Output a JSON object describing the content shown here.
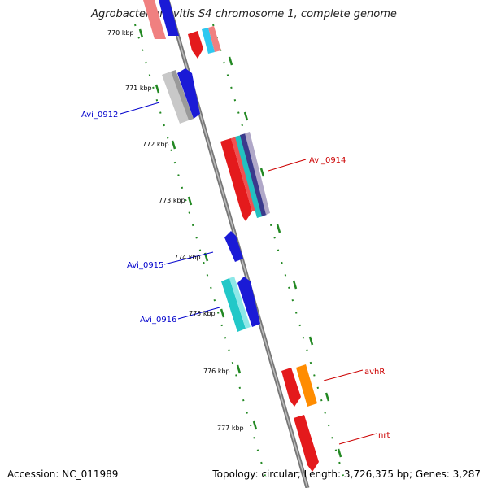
{
  "title": "Agrobacterium vitis S4 chromosome 1, complete genome",
  "footer": {
    "accession": "Accession: NC_011989",
    "summary": "Topology: circular; Length: 3,726,375 bp; Genes: 3,287"
  },
  "colors": {
    "backbone": "#888888",
    "tick_minor": "#228822",
    "label_blue": "#0000cc",
    "label_red": "#cc0000"
  },
  "ticks": [
    {
      "label": "770 kbp"
    },
    {
      "label": "771 kbp"
    },
    {
      "label": "772 kbp"
    },
    {
      "label": "773 kbp"
    },
    {
      "label": "774 kbp"
    },
    {
      "label": "775 kbp"
    },
    {
      "label": "776 kbp"
    },
    {
      "label": "777 kbp"
    }
  ],
  "gene_labels": [
    {
      "name": "Avi_0912",
      "side": "left",
      "color": "blue"
    },
    {
      "name": "Avi_0914",
      "side": "right",
      "color": "red"
    },
    {
      "name": "Avi_0915",
      "side": "left",
      "color": "blue"
    },
    {
      "name": "Avi_0916",
      "side": "left",
      "color": "blue"
    },
    {
      "name": "avhR",
      "side": "right",
      "color": "red"
    },
    {
      "name": "nrt",
      "side": "right",
      "color": "red"
    }
  ]
}
